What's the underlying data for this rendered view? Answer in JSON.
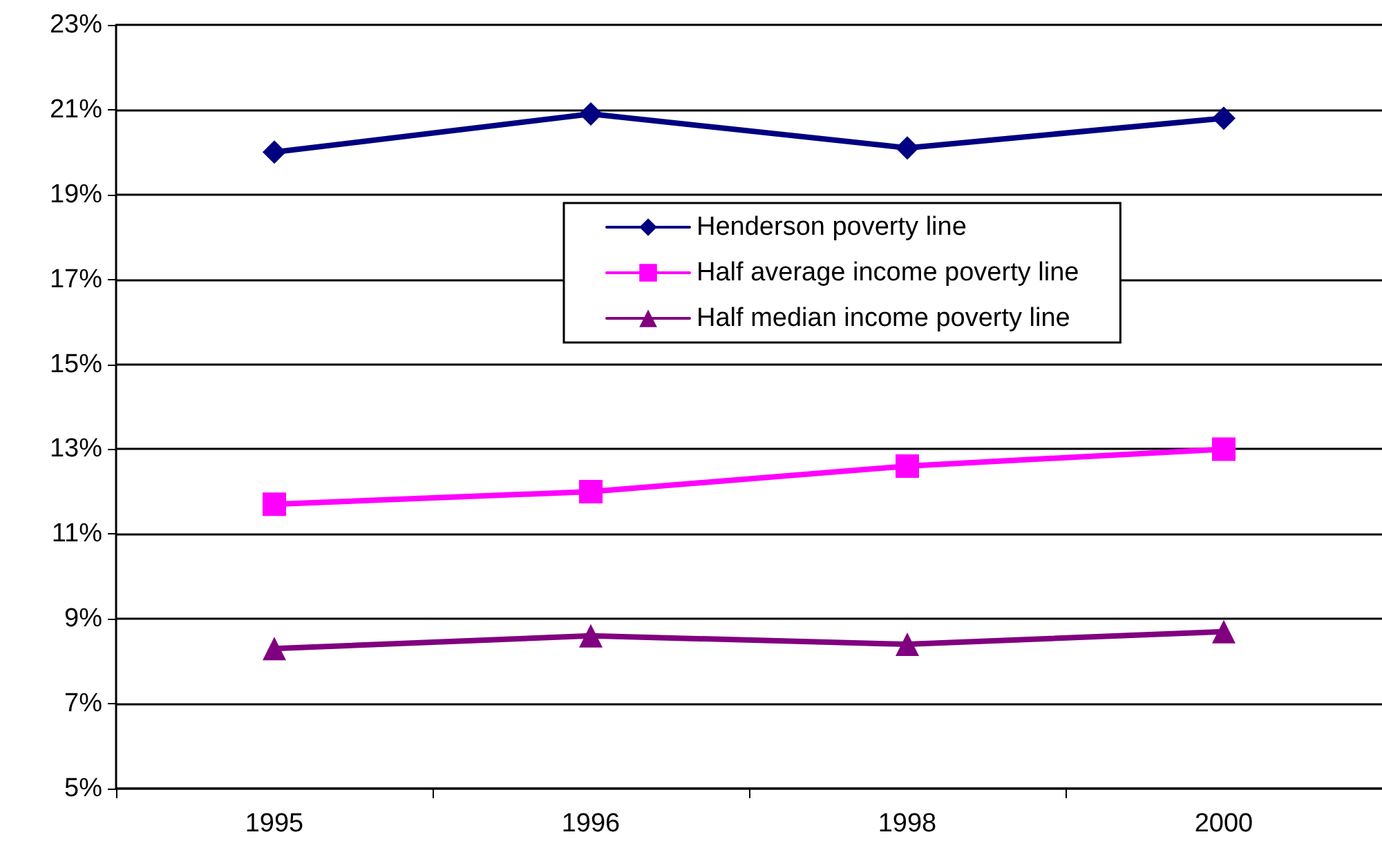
{
  "chart_data": {
    "type": "line",
    "categories": [
      "1995",
      "1996",
      "1998",
      "2000"
    ],
    "series": [
      {
        "name": "Henderson poverty line",
        "color": "#000080",
        "marker": "diamond",
        "values": [
          20.0,
          20.9,
          20.1,
          20.8
        ]
      },
      {
        "name": "Half average income poverty line",
        "color": "#ff00ff",
        "marker": "square",
        "values": [
          11.7,
          12.0,
          12.6,
          13.0
        ]
      },
      {
        "name": "Half median income poverty line",
        "color": "#800080",
        "marker": "triangle",
        "values": [
          8.3,
          8.6,
          8.4,
          8.7
        ]
      }
    ],
    "ylim": [
      5,
      23
    ],
    "yticks": [
      {
        "value": 5,
        "label": "5%"
      },
      {
        "value": 7,
        "label": "7%"
      },
      {
        "value": 9,
        "label": "9%"
      },
      {
        "value": 11,
        "label": "11%"
      },
      {
        "value": 13,
        "label": "13%"
      },
      {
        "value": 15,
        "label": "15%"
      },
      {
        "value": 17,
        "label": "17%"
      },
      {
        "value": 19,
        "label": "19%"
      },
      {
        "value": 21,
        "label": "21%"
      },
      {
        "value": 23,
        "label": "23%"
      }
    ],
    "grid": "y",
    "legend": "top right",
    "line_style": "solid"
  }
}
